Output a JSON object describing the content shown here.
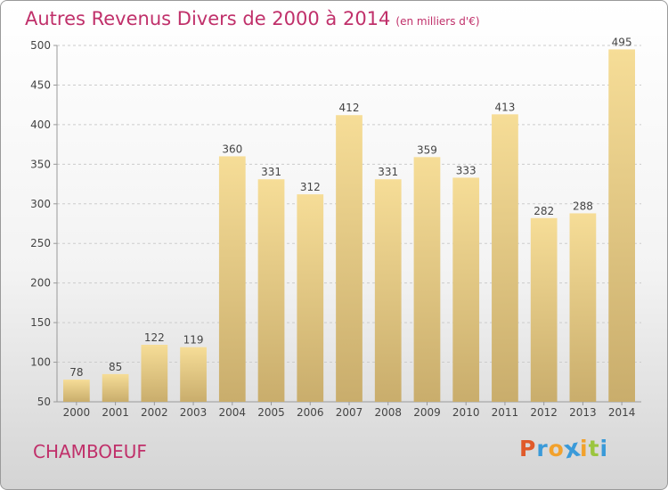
{
  "chart_data": {
    "type": "bar",
    "title": "Autres Revenus Divers de 2000 à 2014",
    "subtitle": "(en milliers d'€)",
    "categories": [
      "2000",
      "2001",
      "2002",
      "2003",
      "2004",
      "2005",
      "2006",
      "2007",
      "2008",
      "2009",
      "2010",
      "2011",
      "2012",
      "2013",
      "2014"
    ],
    "values": [
      78,
      85,
      122,
      119,
      360,
      331,
      312,
      412,
      331,
      359,
      333,
      413,
      282,
      288,
      495
    ],
    "ylim": [
      50,
      500
    ],
    "yticks": [
      50,
      100,
      150,
      200,
      250,
      300,
      350,
      400,
      450,
      500
    ],
    "grid": true,
    "bar_color": "#e8cd84"
  },
  "footer": {
    "commune": "CHAMBOEUF",
    "logo_letters": [
      "P",
      "r",
      "o",
      "x",
      "i",
      "t",
      "i"
    ],
    "logo_colors": [
      "#e05a2a",
      "#3a9ad9",
      "#f2a12c",
      "#3a9ad9",
      "#f2a12c",
      "#9bc53d",
      "#3a9ad9"
    ]
  }
}
